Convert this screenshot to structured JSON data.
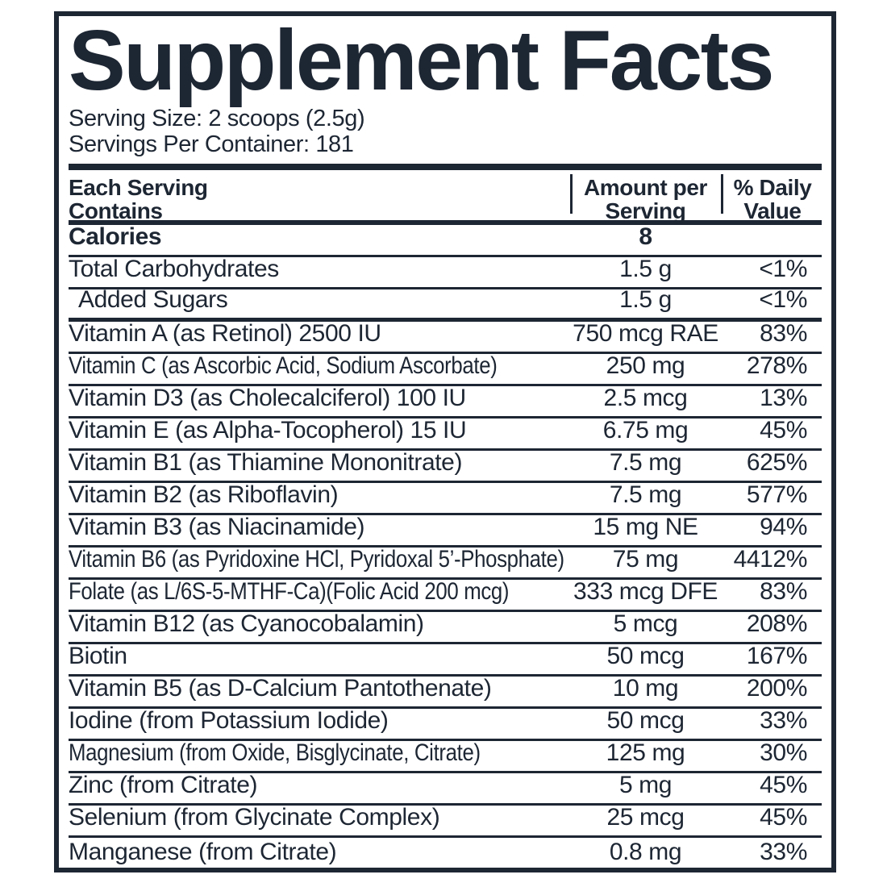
{
  "title": "Supplement Facts",
  "serving_info": {
    "serving_size": "Serving Size: 2 scoops (2.5g)",
    "servings_per_container": "Servings Per Container: 181"
  },
  "table": {
    "header": {
      "each_serving": [
        "Each Serving",
        "Contains"
      ],
      "amount_per": [
        "Amount per",
        "Serving"
      ],
      "daily_value": [
        "% Daily",
        "Value"
      ]
    },
    "rows": [
      {
        "name": "Calories",
        "amount": "8",
        "dv": "",
        "bold": true,
        "indent": false,
        "rule": "thin"
      },
      {
        "name": "Total Carbohydrates",
        "amount": "1.5 g",
        "dv": "<1%",
        "bold": false,
        "indent": false,
        "rule": "thin"
      },
      {
        "name": "Added Sugars",
        "amount": "1.5 g",
        "dv": "<1%",
        "bold": false,
        "indent": true,
        "rule": "thick"
      },
      {
        "name": "Vitamin A (as Retinol) 2500 IU",
        "amount": "750 mcg RAE",
        "dv": "83%",
        "bold": false,
        "indent": false,
        "rule": "thin"
      },
      {
        "name": "Vitamin C (as Ascorbic Acid, Sodium Ascorbate)",
        "amount": "250 mg",
        "dv": "278%",
        "bold": false,
        "indent": false,
        "rule": "thin"
      },
      {
        "name": "Vitamin D3 (as Cholecalciferol) 100 IU",
        "amount": "2.5 mcg",
        "dv": "13%",
        "bold": false,
        "indent": false,
        "rule": "thin"
      },
      {
        "name": "Vitamin E (as Alpha-Tocopherol) 15 IU",
        "amount": "6.75 mg",
        "dv": "45%",
        "bold": false,
        "indent": false,
        "rule": "thin"
      },
      {
        "name": "Vitamin B1 (as Thiamine Mononitrate)",
        "amount": "7.5 mg",
        "dv": "625%",
        "bold": false,
        "indent": false,
        "rule": "thin"
      },
      {
        "name": "Vitamin B2 (as Riboflavin)",
        "amount": "7.5 mg",
        "dv": "577%",
        "bold": false,
        "indent": false,
        "rule": "thin"
      },
      {
        "name": "Vitamin B3 (as Niacinamide)",
        "amount": "15 mg NE",
        "dv": "94%",
        "bold": false,
        "indent": false,
        "rule": "thin"
      },
      {
        "name": "Vitamin B6 (as Pyridoxine HCl, Pyridoxal 5’-Phosphate)",
        "amount": "75 mg",
        "dv": "4412%",
        "bold": false,
        "indent": false,
        "rule": "thin"
      },
      {
        "name": "Folate (as L/6S-5-MTHF-Ca)(Folic Acid 200 mcg)",
        "amount": "333 mcg DFE",
        "dv": "83%",
        "bold": false,
        "indent": false,
        "rule": "thin"
      },
      {
        "name": "Vitamin B12 (as Cyanocobalamin)",
        "amount": "5 mcg",
        "dv": "208%",
        "bold": false,
        "indent": false,
        "rule": "thin"
      },
      {
        "name": "Biotin",
        "amount": "50 mcg",
        "dv": "167%",
        "bold": false,
        "indent": false,
        "rule": "thin"
      },
      {
        "name": "Vitamin B5 (as D-Calcium Pantothenate)",
        "amount": "10 mg",
        "dv": "200%",
        "bold": false,
        "indent": false,
        "rule": "thin"
      },
      {
        "name": "Iodine (from Potassium Iodide)",
        "amount": "50 mcg",
        "dv": "33%",
        "bold": false,
        "indent": false,
        "rule": "thin"
      },
      {
        "name": "Magnesium (from Oxide, Bisglycinate, Citrate)",
        "amount": "125 mg",
        "dv": "30%",
        "bold": false,
        "indent": false,
        "rule": "thin"
      },
      {
        "name": "Zinc (from Citrate)",
        "amount": "5 mg",
        "dv": "45%",
        "bold": false,
        "indent": false,
        "rule": "thin"
      },
      {
        "name": "Selenium (from Glycinate Complex)",
        "amount": "25 mcg",
        "dv": "45%",
        "bold": false,
        "indent": false,
        "rule": "thin"
      },
      {
        "name": "Manganese (from Citrate)",
        "amount": "0.8 mg",
        "dv": "33%",
        "bold": false,
        "indent": false,
        "rule": "none"
      }
    ]
  },
  "colors": {
    "ink": "#1d2633",
    "background": "#ffffff"
  }
}
